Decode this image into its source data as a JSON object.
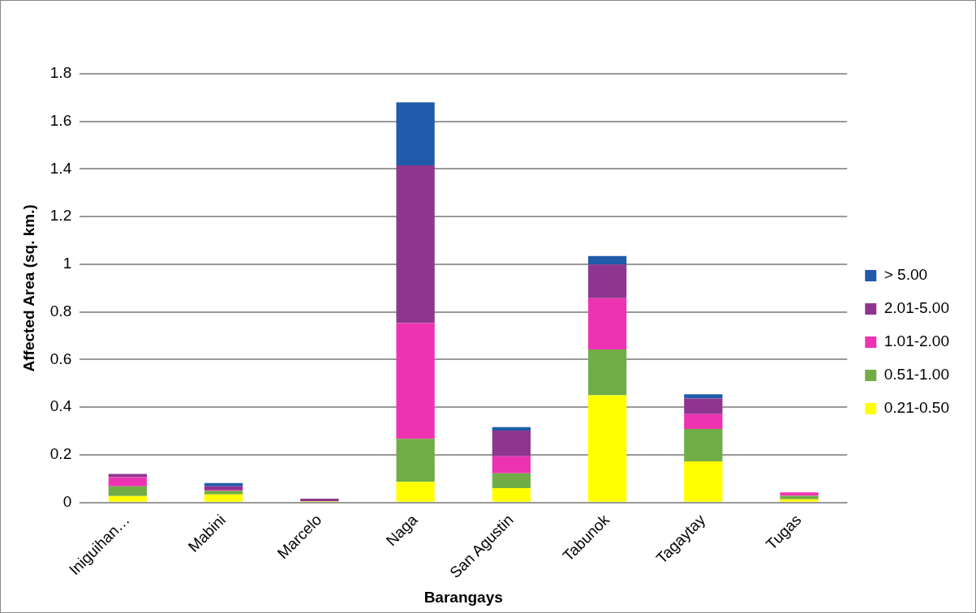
{
  "chart_data": {
    "type": "bar",
    "stacked": true,
    "xlabel": "Barangays",
    "ylabel": "Affected Area (sq. km.)",
    "categories": [
      "Iniguihan…",
      "Mabini",
      "Marcelo",
      "Naga",
      "San Agustin",
      "Tabunok",
      "Tagaytay",
      "Tugas"
    ],
    "series": [
      {
        "name": "0.21-0.50",
        "color": "#ffff00",
        "values": [
          0.027,
          0.034,
          0.005,
          0.086,
          0.06,
          0.45,
          0.172,
          0.013
        ]
      },
      {
        "name": "0.51-1.00",
        "color": "#70ad47",
        "values": [
          0.041,
          0.015,
          0,
          0.181,
          0.062,
          0.192,
          0.137,
          0.015
        ]
      },
      {
        "name": "1.01-2.00",
        "color": "#ee33b2",
        "values": [
          0.038,
          0.004,
          0,
          0.486,
          0.072,
          0.216,
          0.062,
          0.014
        ]
      },
      {
        "name": "2.01-5.00",
        "color": "#8e368f",
        "values": [
          0.014,
          0.015,
          0.011,
          0.662,
          0.108,
          0.141,
          0.065,
          0
        ]
      },
      {
        "name": "> 5.00",
        "color": "#215aaa",
        "values": [
          0,
          0.013,
          0,
          0.265,
          0.014,
          0.036,
          0.018,
          0
        ]
      }
    ],
    "ylim": [
      0,
      1.8
    ],
    "yticks": [
      0,
      0.2,
      0.4,
      0.6,
      0.8,
      1,
      1.2,
      1.4,
      1.6,
      1.8
    ],
    "grid": "y",
    "legend": "right"
  }
}
